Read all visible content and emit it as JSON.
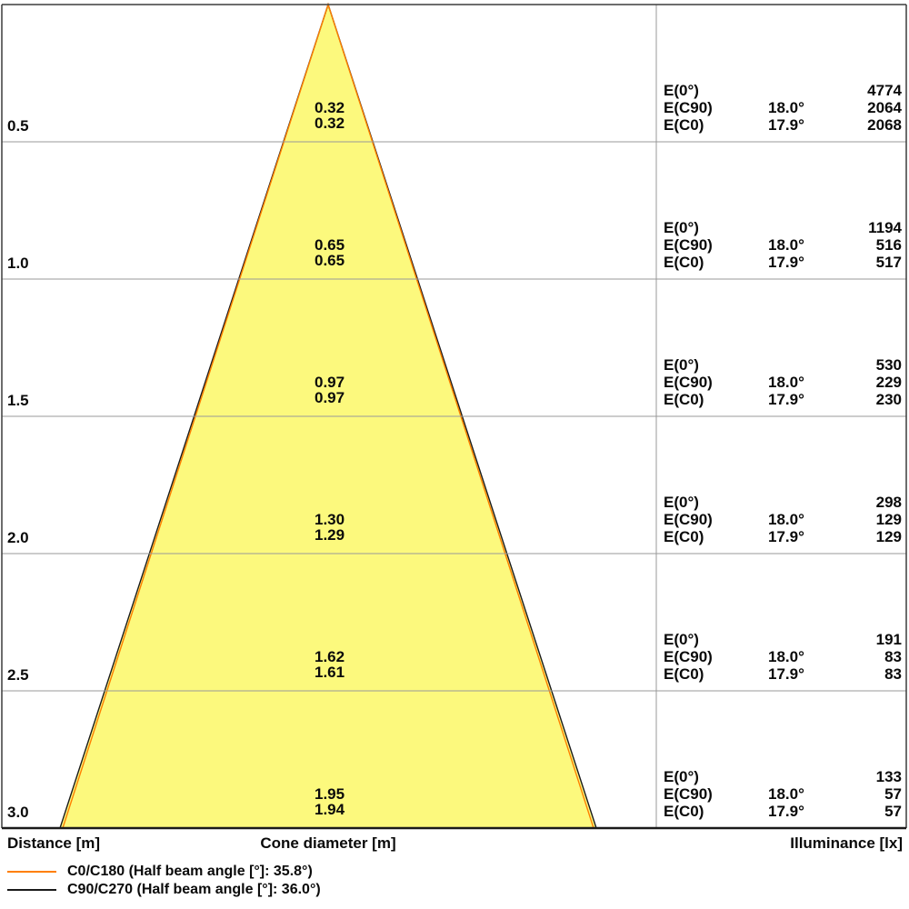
{
  "colors": {
    "cone_fill": "#FCF97D",
    "c0_line": "#FF7F00",
    "c90_line": "#1A1A1A",
    "grid_line": "#999999",
    "border": "#3C3C3C"
  },
  "axis": {
    "distance_label": "Distance [m]",
    "cone_label": "Cone diameter [m]",
    "illuminance_label": "Illuminance [lx]"
  },
  "legend": [
    {
      "name": "C0/C180 (Half beam angle [°]: 35.8°)",
      "color": "#FF7F00"
    },
    {
      "name": "C90/C270 (Half beam angle [°]: 36.0°)",
      "color": "#1A1A1A"
    }
  ],
  "chart_data": {
    "type": "table",
    "title": "Light cone diagram",
    "columns": [
      "Distance [m]",
      "Cone diameter [m]",
      "Illuminance [lx]"
    ],
    "beams": [
      {
        "plane": "C0/C180",
        "half_beam_angle_deg": 35.8
      },
      {
        "plane": "C90/C270",
        "half_beam_angle_deg": 36.0
      }
    ],
    "e_labels": [
      "E(0°)",
      "E(C90)",
      "E(C0)"
    ],
    "rows": [
      {
        "distance": "0.5",
        "cone_c90": "0.32",
        "cone_c0": "0.32",
        "e0": "4774",
        "ec90_angle": "18.0°",
        "ec90": "2064",
        "ec0_angle": "17.9°",
        "ec0": "2068"
      },
      {
        "distance": "1.0",
        "cone_c90": "0.65",
        "cone_c0": "0.65",
        "e0": "1194",
        "ec90_angle": "18.0°",
        "ec90": "516",
        "ec0_angle": "17.9°",
        "ec0": "517"
      },
      {
        "distance": "1.5",
        "cone_c90": "0.97",
        "cone_c0": "0.97",
        "e0": "530",
        "ec90_angle": "18.0°",
        "ec90": "229",
        "ec0_angle": "17.9°",
        "ec0": "230"
      },
      {
        "distance": "2.0",
        "cone_c90": "1.30",
        "cone_c0": "1.29",
        "e0": "298",
        "ec90_angle": "18.0°",
        "ec90": "129",
        "ec0_angle": "17.9°",
        "ec0": "129"
      },
      {
        "distance": "2.5",
        "cone_c90": "1.62",
        "cone_c0": "1.61",
        "e0": "191",
        "ec90_angle": "18.0°",
        "ec90": "83",
        "ec0_angle": "17.9°",
        "ec0": "83"
      },
      {
        "distance": "3.0",
        "cone_c90": "1.95",
        "cone_c0": "1.94",
        "e0": "133",
        "ec90_angle": "18.0°",
        "ec90": "57",
        "ec0_angle": "17.9°",
        "ec0": "57"
      }
    ]
  }
}
